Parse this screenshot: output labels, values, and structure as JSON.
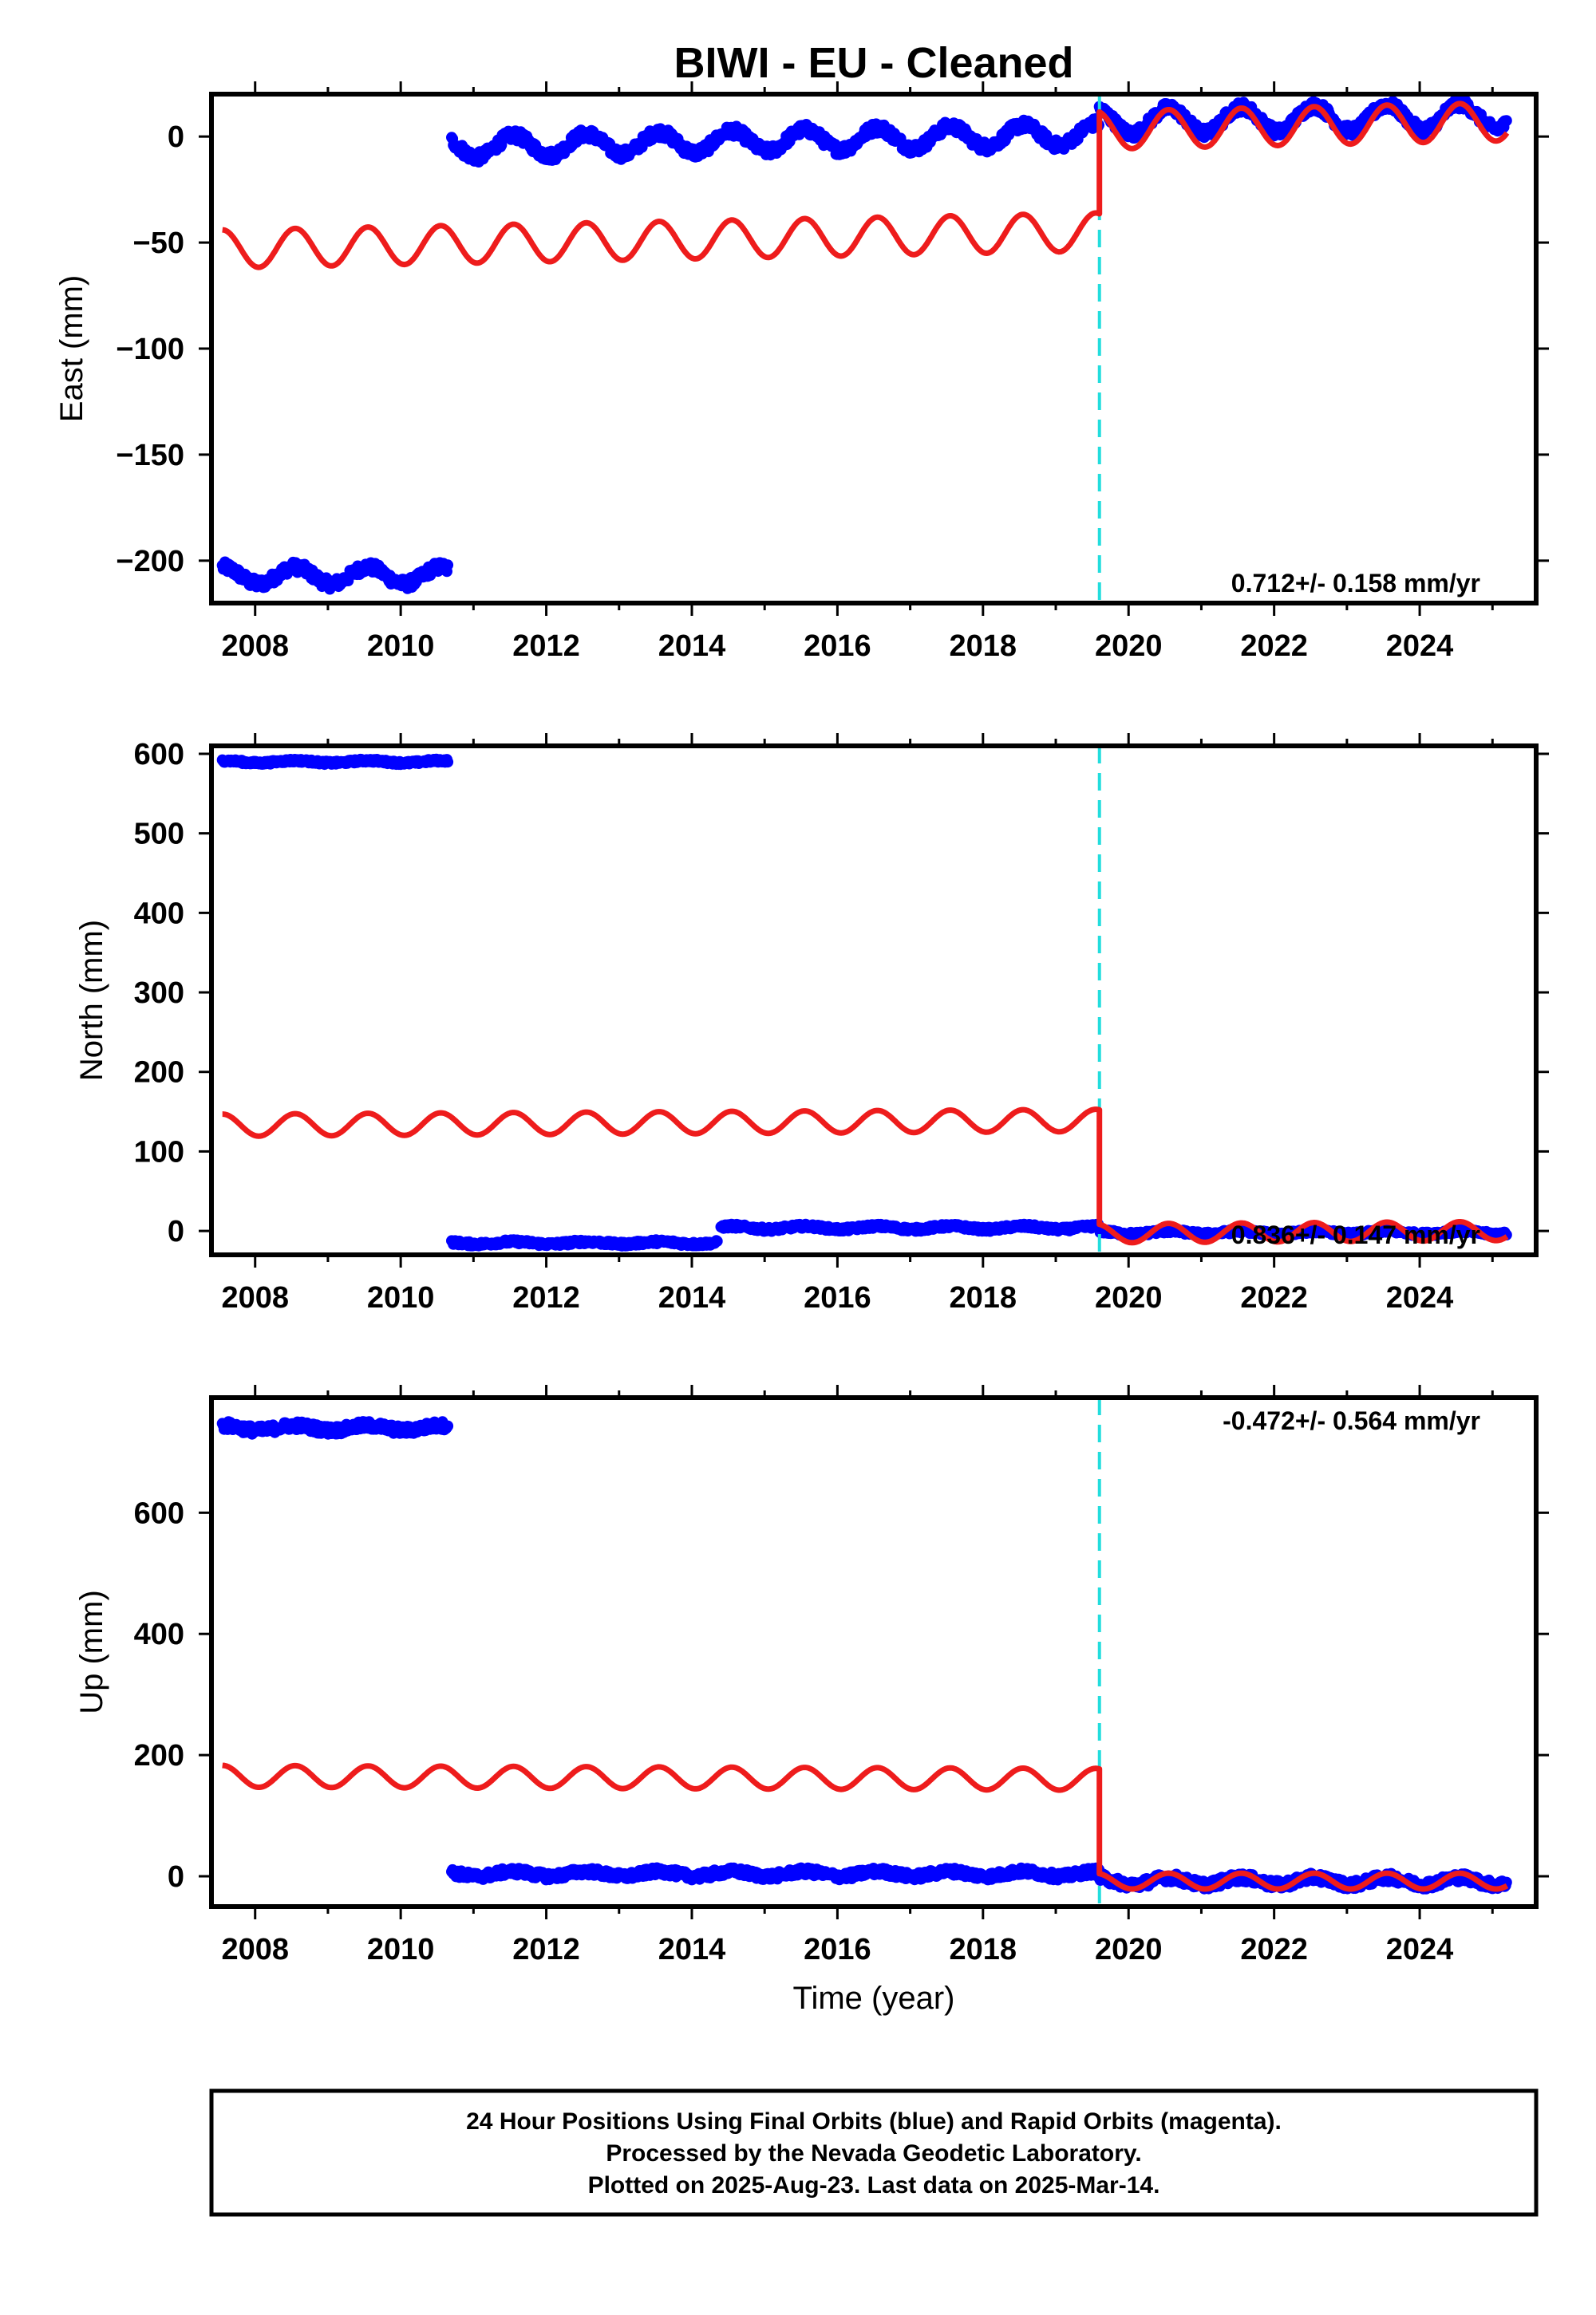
{
  "title": "BIWI  - EU - Cleaned",
  "footer": {
    "lines": [
      "24 Hour Positions Using Final Orbits (blue) and Rapid Orbits (magenta).",
      "Processed by the Nevada Geodetic Laboratory.",
      "Plotted on 2025-Aug-23. Last data on 2025-Mar-14."
    ]
  },
  "colors": {
    "data_points": "#0000ff",
    "model_fit": "#ee1c1c",
    "offset_marker": "#22dddd",
    "frame": "#000000"
  },
  "chart_data": [
    {
      "type": "scatter",
      "panel": "east",
      "xlabel": "",
      "ylabel": "East (mm)",
      "xlim": [
        2007.4,
        2025.6
      ],
      "ylim": [
        -220,
        20
      ],
      "xticks": [
        2008,
        2010,
        2012,
        2014,
        2016,
        2018,
        2020,
        2022,
        2024
      ],
      "yticks": [
        0,
        -50,
        -100,
        -150,
        -200
      ],
      "ytick_labels": [
        "0",
        "−50",
        "−100",
        "−150",
        "−200"
      ],
      "rate_text": "0.712+/- 0.158 mm/yr",
      "rate_position": "bottom-right",
      "offset_epoch": 2019.6,
      "data_segments": [
        {
          "start": 2007.55,
          "end": 2010.65,
          "level": -207,
          "amplitude": 4,
          "noise": 2.5
        },
        {
          "start": 2010.7,
          "end": 2019.6,
          "level": -5,
          "amplitude": 5,
          "noise": 2.5,
          "trend": 0.7
        },
        {
          "start": 2019.6,
          "end": 2025.2,
          "level": 7,
          "amplitude": 6,
          "noise": 2.5,
          "trend": 0.5
        }
      ],
      "model_segments": [
        {
          "start": 2007.55,
          "end": 2019.6,
          "level_start": -53,
          "level_end": -45,
          "amplitude": 9
        },
        {
          "start": 2019.6,
          "end": 2025.2,
          "level_start": 3,
          "level_end": 7,
          "amplitude": 9
        }
      ]
    },
    {
      "type": "scatter",
      "panel": "north",
      "xlabel": "",
      "ylabel": "North (mm)",
      "xlim": [
        2007.4,
        2025.6
      ],
      "ylim": [
        -30,
        610
      ],
      "xticks": [
        2008,
        2010,
        2012,
        2014,
        2016,
        2018,
        2020,
        2022,
        2024
      ],
      "yticks": [
        600,
        500,
        400,
        300,
        200,
        100,
        0
      ],
      "ytick_labels": [
        "600",
        "500",
        "400",
        "300",
        "200",
        "100",
        "0"
      ],
      "rate_text": "0.836+/- 0.147 mm/yr",
      "rate_position": "bottom-right",
      "offset_epoch": 2019.6,
      "data_segments": [
        {
          "start": 2007.55,
          "end": 2010.65,
          "level": 590,
          "amplitude": 1.5,
          "noise": 2
        },
        {
          "start": 2010.7,
          "end": 2014.35,
          "level": -15,
          "amplitude": 1.5,
          "noise": 2.5
        },
        {
          "start": 2014.4,
          "end": 2019.6,
          "level": 4,
          "amplitude": 2,
          "noise": 2.5
        },
        {
          "start": 2019.6,
          "end": 2025.2,
          "level": -2,
          "amplitude": 2,
          "noise": 2.5
        }
      ],
      "model_segments": [
        {
          "start": 2007.55,
          "end": 2019.6,
          "level_start": 133,
          "level_end": 139,
          "amplitude": 14
        },
        {
          "start": 2019.6,
          "end": 2025.2,
          "level_start": -3,
          "level_end": 0,
          "amplitude": 12
        }
      ]
    },
    {
      "type": "scatter",
      "panel": "up",
      "xlabel": "Time (year)",
      "ylabel": "Up (mm)",
      "xlim": [
        2007.4,
        2025.6
      ],
      "ylim": [
        -50,
        790
      ],
      "xticks": [
        2008,
        2010,
        2012,
        2014,
        2016,
        2018,
        2020,
        2022,
        2024
      ],
      "yticks": [
        600,
        400,
        200,
        0
      ],
      "ytick_labels": [
        "600",
        "400",
        "200",
        "0"
      ],
      "rate_text": "-0.472+/- 0.564 mm/yr",
      "rate_position": "top-right",
      "offset_epoch": 2019.6,
      "data_segments": [
        {
          "start": 2007.55,
          "end": 2010.65,
          "level": 740,
          "amplitude": 4,
          "noise": 7
        },
        {
          "start": 2010.7,
          "end": 2019.6,
          "level": 4,
          "amplitude": 4,
          "noise": 6
        },
        {
          "start": 2019.6,
          "end": 2025.2,
          "level": -8,
          "amplitude": 6,
          "noise": 7
        }
      ],
      "model_segments": [
        {
          "start": 2007.55,
          "end": 2019.6,
          "level_start": 165,
          "level_end": 160,
          "amplitude": 18
        },
        {
          "start": 2019.6,
          "end": 2025.2,
          "level_start": -8,
          "level_end": -8,
          "amplitude": 13
        }
      ]
    }
  ]
}
